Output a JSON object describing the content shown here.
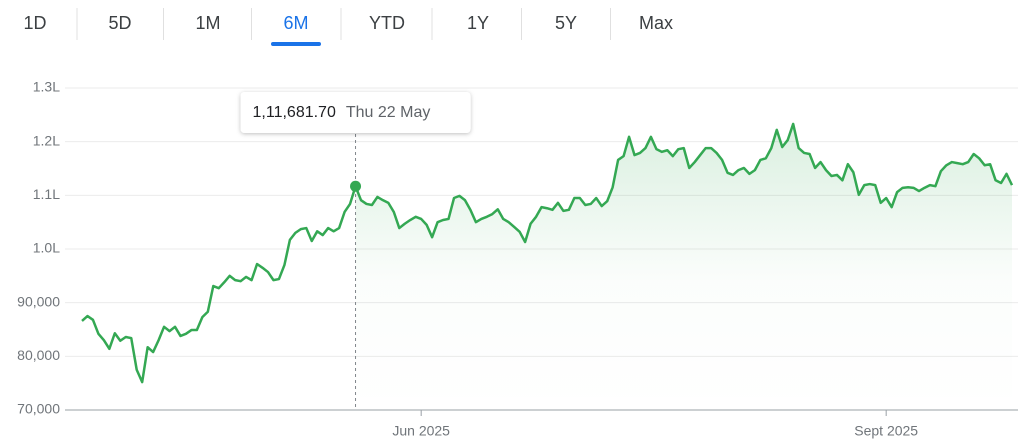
{
  "range_tabs": {
    "items": [
      "1D",
      "5D",
      "1M",
      "6M",
      "YTD",
      "1Y",
      "5Y",
      "Max"
    ],
    "selected": "6M"
  },
  "chart_data": {
    "type": "line",
    "categories": [
      null,
      null,
      null,
      null,
      null,
      null,
      null,
      null,
      null,
      null,
      null,
      null,
      null,
      null,
      null,
      null,
      null,
      null,
      null,
      null,
      null,
      null,
      null,
      null,
      null,
      null,
      null,
      null,
      null,
      null,
      null,
      null,
      null,
      null,
      null,
      null,
      null,
      null,
      null,
      null,
      null,
      null,
      null,
      null,
      null,
      null,
      null,
      null,
      null,
      null,
      null,
      null,
      null,
      null,
      null,
      null,
      null,
      null,
      null,
      null,
      null,
      null,
      "Jun 2025",
      null,
      null,
      null,
      null,
      null,
      null,
      null,
      null,
      null,
      null,
      null,
      null,
      null,
      null,
      null,
      null,
      null,
      null,
      null,
      null,
      null,
      null,
      null,
      null,
      null,
      null,
      null,
      null,
      null,
      null,
      null,
      null,
      null,
      null,
      null,
      null,
      null,
      null,
      null,
      null,
      null,
      null,
      null,
      null,
      null,
      null,
      null,
      null,
      null,
      null,
      null,
      null,
      null,
      null,
      null,
      null,
      null,
      null,
      null,
      null,
      null,
      null,
      null,
      null,
      null,
      null,
      null,
      null,
      null,
      null,
      null,
      null,
      null,
      null,
      null,
      null,
      null,
      null,
      null,
      null,
      null,
      null,
      null,
      null,
      "Sept 2025",
      null,
      null,
      null,
      null,
      null,
      null,
      null,
      null,
      null,
      null,
      null,
      null,
      null,
      null,
      null,
      null,
      null,
      null,
      null,
      null,
      null,
      null,
      null
    ],
    "series": [
      {
        "color": "#34a853",
        "values": [
          86600,
          87500,
          86800,
          84200,
          83000,
          81400,
          84300,
          82900,
          83600,
          83400,
          77500,
          75200,
          81700,
          80800,
          83000,
          85500,
          84700,
          85500,
          83800,
          84200,
          84900,
          84900,
          87300,
          88300,
          93100,
          92700,
          93800,
          95000,
          94200,
          94000,
          94800,
          94200,
          97200,
          96500,
          95700,
          94200,
          94400,
          97000,
          101700,
          103000,
          103700,
          103900,
          101500,
          103300,
          102600,
          103900,
          103300,
          103900,
          106900,
          108400,
          111681.7,
          109100,
          108400,
          108200,
          109700,
          109100,
          108600,
          106900,
          103900,
          104700,
          105400,
          106000,
          105600,
          104500,
          102200,
          105000,
          105400,
          105600,
          109500,
          109900,
          109100,
          107300,
          105000,
          105600,
          106000,
          106500,
          107400,
          105600,
          105000,
          104100,
          103200,
          101300,
          104700,
          106000,
          107800,
          107600,
          107300,
          108600,
          107100,
          107300,
          109500,
          109500,
          108200,
          108400,
          109500,
          108000,
          108900,
          111500,
          116600,
          117300,
          120900,
          117500,
          117900,
          118800,
          120900,
          118600,
          118100,
          118400,
          117300,
          118600,
          118800,
          115100,
          116200,
          117500,
          118800,
          118800,
          117900,
          116600,
          114200,
          113800,
          114700,
          115100,
          114000,
          114700,
          116600,
          116900,
          118800,
          122200,
          119000,
          120300,
          123300,
          118800,
          117900,
          117700,
          115100,
          116200,
          114700,
          113600,
          113800,
          112800,
          115800,
          114300,
          110100,
          111900,
          112100,
          111900,
          108600,
          109500,
          107800,
          110600,
          111400,
          111500,
          111400,
          110800,
          111400,
          111900,
          111700,
          114500,
          115600,
          116200,
          116000,
          115800,
          116200,
          117700,
          116900,
          115600,
          115800,
          112800,
          112300,
          114000,
          111900
        ]
      }
    ],
    "ylim": [
      70000,
      130000
    ],
    "yticks": [
      {
        "value": 70000,
        "label": "70,000"
      },
      {
        "value": 80000,
        "label": "80,000"
      },
      {
        "value": 90000,
        "label": "90,000"
      },
      {
        "value": 100000,
        "label": "1.0L"
      },
      {
        "value": 110000,
        "label": "1.1L"
      },
      {
        "value": 120000,
        "label": "1.2L"
      },
      {
        "value": 130000,
        "label": "1.3L"
      }
    ],
    "grid": true,
    "tooltip": {
      "value": 111681.7,
      "label": "1,11,681.70",
      "date": "Thu 22 May"
    }
  }
}
